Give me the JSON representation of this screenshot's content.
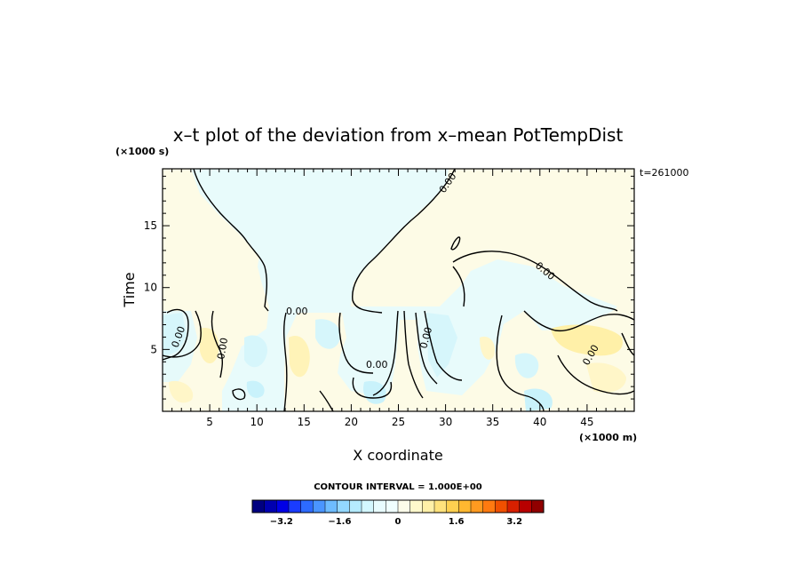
{
  "chart_data": {
    "type": "heatmap",
    "title": "x–t plot of the deviation from x–mean PotTempDist",
    "xlabel": "X coordinate",
    "ylabel": "Time",
    "x_unit": "(×1000 m)",
    "y_unit": "(×1000 s)",
    "time_note": "t=261000",
    "xlim": [
      0,
      50
    ],
    "ylim": [
      0,
      19.6
    ],
    "xticks": [
      5,
      10,
      15,
      20,
      25,
      30,
      35,
      40,
      45
    ],
    "yticks": [
      5,
      10,
      15
    ],
    "contour_interval_text": "CONTOUR INTERVAL = 1.000E+00",
    "contour_label": "0.00",
    "colorbar": {
      "min": -4.0,
      "max": 4.0,
      "tick_labels": [
        "−3.2",
        "−1.6",
        "0",
        "1.6",
        "3.2"
      ],
      "tick_values": [
        -3.2,
        -1.6,
        0,
        1.6,
        3.2
      ],
      "colors": [
        "#000080",
        "#0000b0",
        "#0000e6",
        "#1a3cff",
        "#2d6bff",
        "#4a95ff",
        "#6ebcff",
        "#93d7ff",
        "#b5ebff",
        "#d3f7ff",
        "#e8fcff",
        "#f0ffff",
        "#fcfcea",
        "#fff9cc",
        "#fff0a8",
        "#ffe27c",
        "#ffd050",
        "#ffb830",
        "#ff9a20",
        "#ff7a10",
        "#f05000",
        "#d82000",
        "#b80000",
        "#900000"
      ]
    },
    "field_description": "Mostly light-yellow (slightly positive) region with light-cyan (slightly negative) upper-middle region; stronger cyan/yellow patches below t=8.5 (x1000 s)."
  }
}
